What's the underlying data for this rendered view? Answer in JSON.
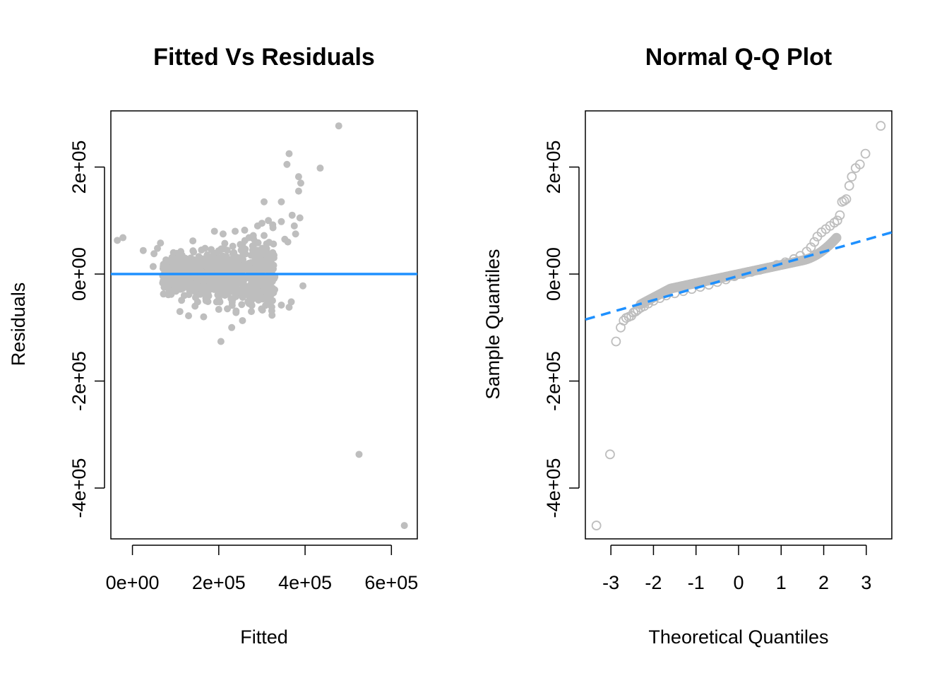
{
  "chart_data": [
    {
      "type": "scatter",
      "title": "Fitted Vs Residuals",
      "xlabel": "Fitted",
      "ylabel": "Residuals",
      "xlim": [
        -50000,
        660000
      ],
      "ylim": [
        -495000,
        305000
      ],
      "xticks": [
        0,
        200000,
        400000,
        600000
      ],
      "xtick_labels": [
        "0e+00",
        "2e+05",
        "4e+05",
        "6e+05"
      ],
      "yticks": [
        -400000,
        -200000,
        0,
        200000
      ],
      "ytick_labels": [
        "-4e+05",
        "-2e+05",
        "0e+00",
        "2e+05"
      ],
      "marker": "filled-circle",
      "marker_color": "#BEBEBE",
      "reference_line": {
        "y": 0,
        "color": "#1E90FF",
        "style": "solid"
      },
      "grid": false,
      "legend": "none",
      "points": [
        [
          -35000,
          63000
        ],
        [
          -22000,
          68000
        ],
        [
          25000,
          44000
        ],
        [
          50000,
          38000
        ],
        [
          48000,
          14000
        ],
        [
          58000,
          48000
        ],
        [
          65000,
          58000
        ],
        [
          75000,
          20000
        ],
        [
          80000,
          5000
        ],
        [
          85000,
          -28000
        ],
        [
          95000,
          40000
        ],
        [
          100000,
          10000
        ],
        [
          105000,
          25000
        ],
        [
          110000,
          -10000
        ],
        [
          115000,
          35000
        ],
        [
          120000,
          -40000
        ],
        [
          125000,
          15000
        ],
        [
          130000,
          -20000
        ],
        [
          135000,
          30000
        ],
        [
          140000,
          -5000
        ],
        [
          145000,
          -60000
        ],
        [
          150000,
          20000
        ],
        [
          155000,
          -30000
        ],
        [
          160000,
          45000
        ],
        [
          165000,
          0
        ],
        [
          170000,
          -45000
        ],
        [
          175000,
          12000
        ],
        [
          180000,
          -25000
        ],
        [
          185000,
          28000
        ],
        [
          190000,
          -8000
        ],
        [
          195000,
          -52000
        ],
        [
          200000,
          18000
        ],
        [
          205000,
          -35000
        ],
        [
          210000,
          32000
        ],
        [
          215000,
          -15000
        ],
        [
          220000,
          -65000
        ],
        [
          225000,
          8000
        ],
        [
          230000,
          -22000
        ],
        [
          235000,
          40000
        ],
        [
          240000,
          -42000
        ],
        [
          245000,
          22000
        ],
        [
          250000,
          -10000
        ],
        [
          255000,
          55000
        ],
        [
          260000,
          -30000
        ],
        [
          265000,
          15000
        ],
        [
          270000,
          -55000
        ],
        [
          275000,
          35000
        ],
        [
          280000,
          -18000
        ],
        [
          285000,
          60000
        ],
        [
          290000,
          5000
        ],
        [
          295000,
          -38000
        ],
        [
          300000,
          30000
        ],
        [
          305000,
          -12000
        ],
        [
          310000,
          48000
        ],
        [
          315000,
          -25000
        ],
        [
          320000,
          20000
        ],
        [
          325000,
          40000
        ],
        [
          330000,
          -5000
        ],
        [
          110000,
          -70000
        ],
        [
          130000,
          -78000
        ],
        [
          165000,
          -80000
        ],
        [
          205000,
          -126000
        ],
        [
          230000,
          -100000
        ],
        [
          255000,
          -87000
        ],
        [
          240000,
          -72000
        ],
        [
          200000,
          -66000
        ],
        [
          140000,
          62000
        ],
        [
          190000,
          80000
        ],
        [
          210000,
          75000
        ],
        [
          238000,
          80000
        ],
        [
          260000,
          82000
        ],
        [
          270000,
          68000
        ],
        [
          280000,
          72000
        ],
        [
          290000,
          90000
        ],
        [
          300000,
          95000
        ],
        [
          305000,
          72000
        ],
        [
          315000,
          100000
        ],
        [
          325000,
          92000
        ],
        [
          345000,
          98000
        ],
        [
          305000,
          135000
        ],
        [
          345000,
          135000
        ],
        [
          353000,
          65000
        ],
        [
          360000,
          60000
        ],
        [
          370000,
          110000
        ],
        [
          375000,
          90000
        ],
        [
          378000,
          75000
        ],
        [
          388000,
          105000
        ],
        [
          385000,
          155000
        ],
        [
          358000,
          205000
        ],
        [
          363000,
          225000
        ],
        [
          385000,
          182000
        ],
        [
          390000,
          170000
        ],
        [
          435000,
          198000
        ],
        [
          478000,
          277000
        ],
        [
          525000,
          -337000
        ],
        [
          630000,
          -470000
        ],
        [
          395000,
          -22000
        ],
        [
          368000,
          -52000
        ],
        [
          345000,
          -58000
        ],
        [
          363000,
          -62000
        ]
      ]
    },
    {
      "type": "scatter",
      "title": "Normal Q-Q Plot",
      "xlabel": "Theoretical Quantiles",
      "ylabel": "Sample Quantiles",
      "xlim": [
        -3.6,
        3.6
      ],
      "ylim": [
        -495000,
        305000
      ],
      "xticks": [
        -3,
        -2,
        -1,
        0,
        1,
        2,
        3
      ],
      "xtick_labels": [
        "-3",
        "-2",
        "-1",
        "0",
        "1",
        "2",
        "3"
      ],
      "yticks": [
        -400000,
        -200000,
        0,
        200000
      ],
      "ytick_labels": [
        "-4e+05",
        "-2e+05",
        "0e+00",
        "2e+05"
      ],
      "marker": "open-circle",
      "marker_color": "#BEBEBE",
      "reference_line": {
        "points": [
          [
            -3.6,
            -85000
          ],
          [
            3.6,
            78000
          ]
        ],
        "color": "#1E90FF",
        "style": "dashed"
      },
      "grid": false,
      "legend": "none",
      "points": [
        [
          -3.34,
          -470000
        ],
        [
          -3.02,
          -337000
        ],
        [
          -2.88,
          -126000
        ],
        [
          -2.77,
          -100000
        ],
        [
          -2.7,
          -87000
        ],
        [
          -2.64,
          -82000
        ],
        [
          -2.58,
          -80000
        ],
        [
          -2.52,
          -78000
        ],
        [
          -2.47,
          -72000
        ],
        [
          -2.42,
          -70000
        ],
        [
          -2.37,
          -67000
        ],
        [
          -2.3,
          -63000
        ],
        [
          -2.22,
          -60000
        ],
        [
          -2.12,
          -55000
        ],
        [
          -2.0,
          -50000
        ],
        [
          -1.85,
          -45000
        ],
        [
          -1.7,
          -40000
        ],
        [
          -1.5,
          -36000
        ],
        [
          -1.3,
          -32000
        ],
        [
          -1.1,
          -28000
        ],
        [
          -0.9,
          -24000
        ],
        [
          -0.7,
          -20000
        ],
        [
          -0.5,
          -15000
        ],
        [
          -0.3,
          -10000
        ],
        [
          -0.1,
          -4000
        ],
        [
          0.1,
          0
        ],
        [
          0.3,
          4000
        ],
        [
          0.5,
          8000
        ],
        [
          0.7,
          12000
        ],
        [
          0.9,
          17000
        ],
        [
          1.1,
          22000
        ],
        [
          1.3,
          28000
        ],
        [
          1.45,
          34000
        ],
        [
          1.6,
          42000
        ],
        [
          1.7,
          50000
        ],
        [
          1.78,
          60000
        ],
        [
          1.85,
          70000
        ],
        [
          1.95,
          78000
        ],
        [
          2.05,
          84000
        ],
        [
          2.15,
          90000
        ],
        [
          2.25,
          96000
        ],
        [
          2.32,
          100000
        ],
        [
          2.38,
          110000
        ],
        [
          2.43,
          135000
        ],
        [
          2.48,
          137000
        ],
        [
          2.53,
          140000
        ],
        [
          2.6,
          165000
        ],
        [
          2.66,
          182000
        ],
        [
          2.75,
          198000
        ],
        [
          2.85,
          205000
        ],
        [
          2.98,
          225000
        ],
        [
          3.34,
          277000
        ]
      ]
    }
  ]
}
